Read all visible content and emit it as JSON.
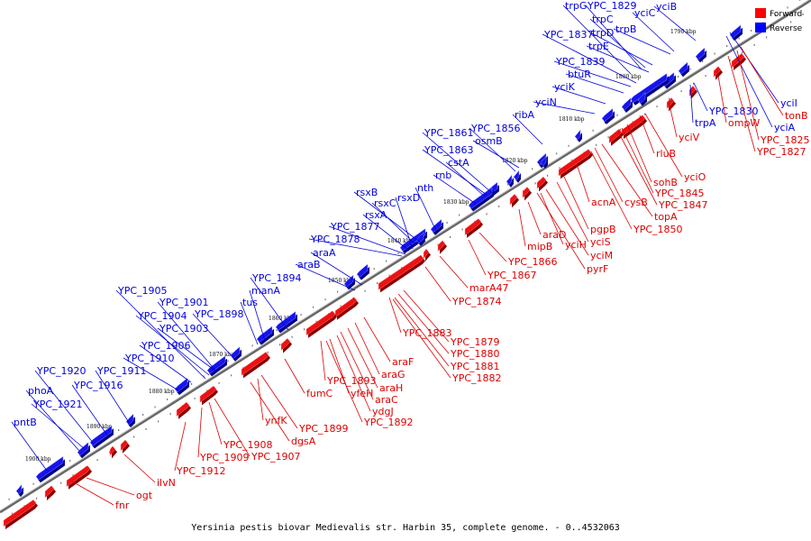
{
  "footer": "Yersinia pestis biovar Medievalis str. Harbin 35, complete genome. - 0..4532063",
  "legend": [
    {
      "label": "Forward",
      "color": "#ff0000"
    },
    {
      "label": "Reverse",
      "color": "#0000ff"
    }
  ],
  "colors": {
    "forward": "#ee1111",
    "reverse": "#1111ee",
    "axis": "#555555"
  },
  "ticks": [
    "1790 kbp",
    "1800 kbp",
    "1810 kbp",
    "1820 kbp",
    "1830 kbp",
    "1840 kbp",
    "1850 kbp",
    "1860 kbp",
    "1870 kbp",
    "1880 kbp",
    "1890 kbp",
    "1900 kbp"
  ],
  "reverse_labels": [
    "trpG",
    "YPC_1829",
    "yciC",
    "yciB",
    "trpC",
    "trpD",
    "YPC_1837",
    "trpB",
    "trpE",
    "YPC_1839",
    "btuR",
    "yciK",
    "yciN",
    "ribA",
    "YPC_1856",
    "YPC_1861",
    "osmB",
    "YPC_1863",
    "cstA",
    "rnb",
    "nth",
    "rsxB",
    "rsxC",
    "rsxD",
    "rsxA",
    "YPC_1877",
    "YPC_1878",
    "araA",
    "araB",
    "YPC_1894",
    "manA",
    "tus",
    "YPC_1898",
    "YPC_1901",
    "YPC_1904",
    "YPC_1903",
    "YPC_1905",
    "YPC_1906",
    "YPC_1910",
    "YPC_1911",
    "YPC_1920",
    "YPC_1916",
    "phoA",
    "YPC_1921",
    "pntB",
    "trpA",
    "YPC_1830",
    "yciI",
    "yciA"
  ],
  "forward_labels": [
    "tonB",
    "ompW",
    "YPC_1825",
    "YPC_1827",
    "yciV",
    "rluB",
    "yciO",
    "sohB",
    "YPC_1845",
    "YPC_1847",
    "acnA",
    "cysB",
    "topA",
    "pgpB",
    "YPC_1850",
    "yciS",
    "yciM",
    "araD",
    "yciH",
    "mipB",
    "pyrF",
    "YPC_1866",
    "YPC_1867",
    "marA47",
    "YPC_1874",
    "YPC_1883",
    "YPC_1879",
    "YPC_1880",
    "YPC_1881",
    "YPC_1882",
    "araF",
    "araG",
    "araH",
    "araC",
    "ydgJ",
    "YPC_1893",
    "yfeH",
    "YPC_1892",
    "fumC",
    "ynfK",
    "YPC_1899",
    "dgsA",
    "YPC_1908",
    "YPC_1907",
    "YPC_1909",
    "YPC_1912",
    "ilvN",
    "ogt",
    "fnr"
  ]
}
